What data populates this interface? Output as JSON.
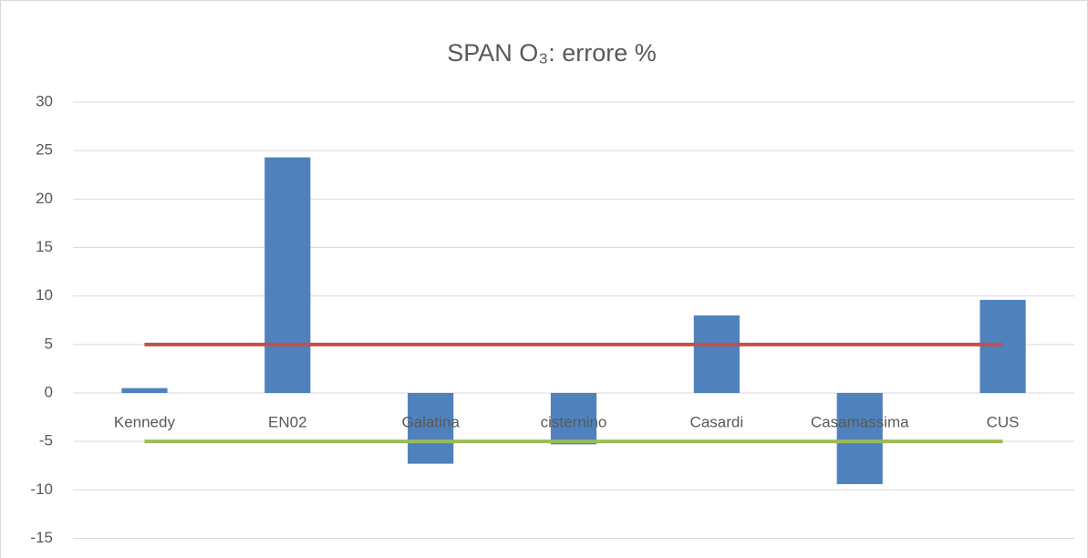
{
  "chart_data": {
    "type": "bar",
    "title": "SPAN O₃: errore %",
    "categories": [
      "Kennedy",
      "EN02",
      "Galatina",
      "cisternino",
      "Casardi",
      "Casamassima",
      "CUS"
    ],
    "series": [
      {
        "type": "bar",
        "color": "#4f81bd",
        "values": [
          0.5,
          24.3,
          -7.3,
          -5.3,
          8.0,
          -9.4,
          9.6
        ]
      },
      {
        "type": "line",
        "color": "#c0504d",
        "values": [
          5,
          5,
          5,
          5,
          5,
          5,
          5
        ]
      },
      {
        "type": "line",
        "color": "#9bbb59",
        "values": [
          -5,
          -5,
          -5,
          -5,
          -5,
          -5,
          -5
        ]
      }
    ],
    "ylim": [
      -15,
      30
    ],
    "yticks": [
      -15,
      -10,
      -5,
      0,
      5,
      10,
      15,
      20,
      25,
      30
    ],
    "grid": true
  }
}
